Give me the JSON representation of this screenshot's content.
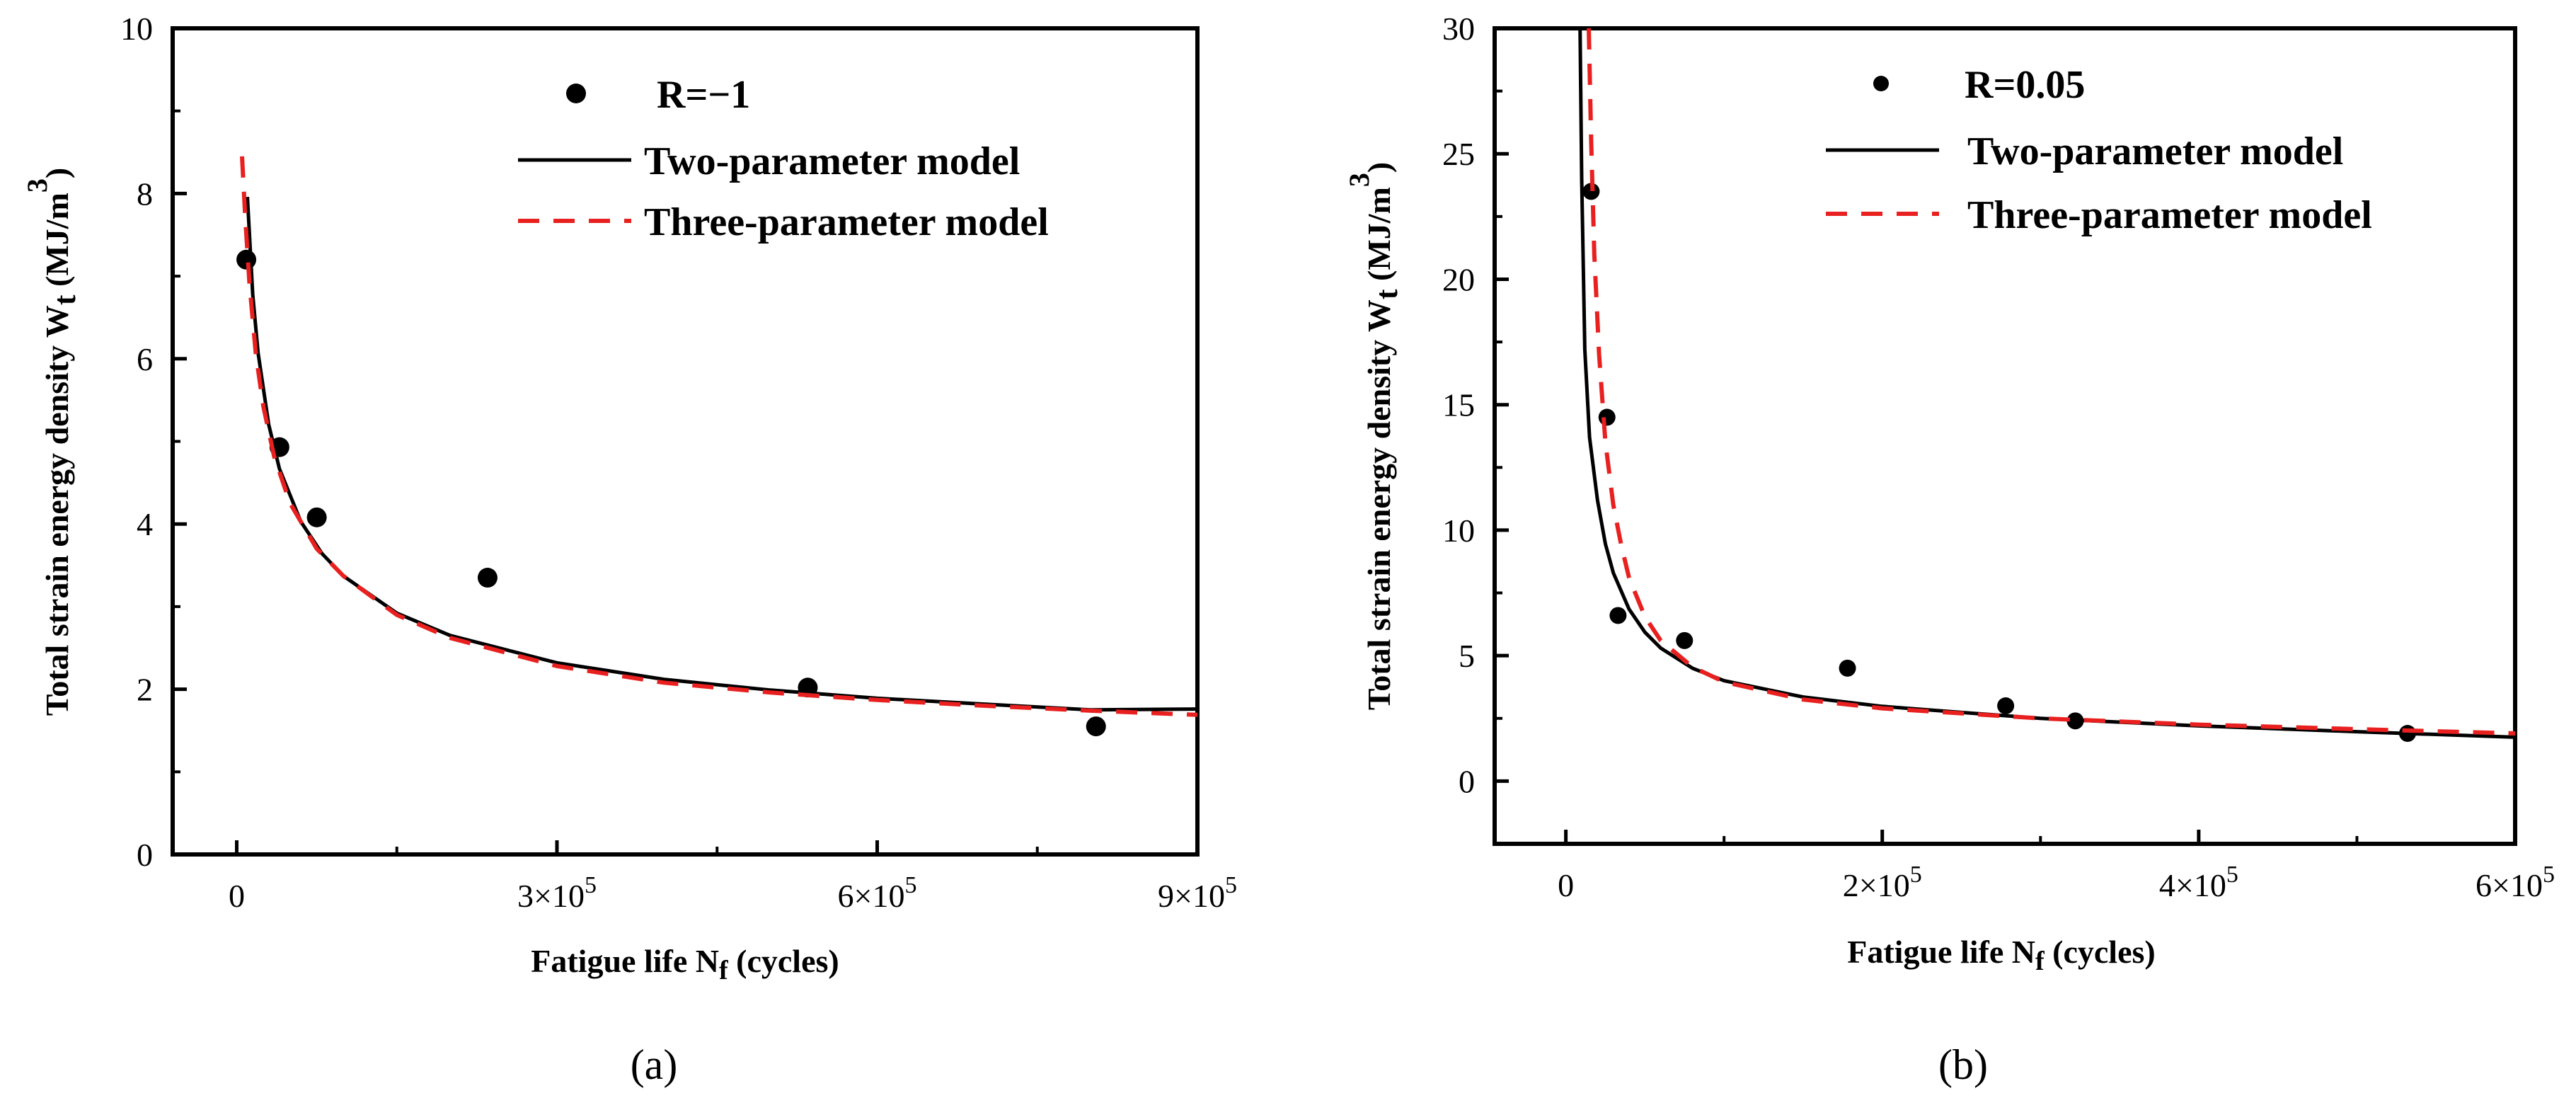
{
  "colors": {
    "model2": "#000000",
    "model3": "#e8201f",
    "points": "#000000"
  },
  "chart_data": [
    {
      "type": "scatter",
      "panel_label": "(a)",
      "xlabel_main": "Fatigue life N",
      "xlabel_sub": "f",
      "xlabel_tail": " (cycles)",
      "ylabel_main": "Total strain energy density  W",
      "ylabel_sub": "t",
      "ylabel_tail": " (MJ/m",
      "ylabel_sup": "3",
      "ylabel_close": ")",
      "xlim": [
        -60000,
        900000
      ],
      "ylim": [
        0,
        10
      ],
      "xticks": [
        0,
        300000,
        600000,
        900000
      ],
      "xtick_labels": [
        {
          "base": "0",
          "exp": ""
        },
        {
          "base": "3×10",
          "exp": "5"
        },
        {
          "base": "6×10",
          "exp": "5"
        },
        {
          "base": "9×10",
          "exp": "5"
        }
      ],
      "yticks": [
        0,
        2,
        4,
        6,
        8,
        10
      ],
      "ytick_labels": [
        "0",
        "2",
        "4",
        "6",
        "8",
        "10"
      ],
      "legend": [
        "R=−1",
        "Two-parameter model",
        "Three-parameter model"
      ],
      "legend_position": "top-right",
      "series": [
        {
          "name": "R=−1",
          "kind": "points",
          "x": [
            9000,
            40000,
            75000,
            235000,
            535000,
            805000
          ],
          "y": [
            7.2,
            4.93,
            4.08,
            3.35,
            2.02,
            1.55
          ]
        },
        {
          "name": "Two-parameter model",
          "kind": "line",
          "x": [
            10000,
            15000,
            20000,
            30000,
            40000,
            60000,
            80000,
            100000,
            150000,
            200000,
            300000,
            400000,
            500000,
            600000,
            700000,
            800000,
            900000
          ],
          "y": [
            7.96,
            6.78,
            6.07,
            5.2,
            4.67,
            4.03,
            3.64,
            3.37,
            2.92,
            2.65,
            2.32,
            2.12,
            1.99,
            1.89,
            1.82,
            1.75,
            1.76
          ]
        },
        {
          "name": "Three-parameter model",
          "kind": "dashed-line",
          "x": [
            5000,
            8000,
            12000,
            18000,
            25000,
            35000,
            50000,
            75000,
            100000,
            150000,
            200000,
            300000,
            400000,
            500000,
            600000,
            700000,
            800000,
            900000
          ],
          "y": [
            8.45,
            7.7,
            6.9,
            6.05,
            5.42,
            4.82,
            4.25,
            3.7,
            3.37,
            2.9,
            2.62,
            2.28,
            2.08,
            1.96,
            1.87,
            1.8,
            1.74,
            1.69
          ]
        }
      ]
    },
    {
      "type": "scatter",
      "panel_label": "(b)",
      "xlabel_main": "Fatigue life N",
      "xlabel_sub": "f",
      "xlabel_tail": " (cycles)",
      "ylabel_main": "Total strain energy density  W",
      "ylabel_sub": "t",
      "ylabel_tail": " (MJ/m",
      "ylabel_sup": "3",
      "ylabel_close": ")",
      "xlim": [
        -45000,
        600000
      ],
      "ylim": [
        -2.5,
        30
      ],
      "xticks": [
        0,
        200000,
        400000,
        600000
      ],
      "xtick_labels": [
        {
          "base": "0",
          "exp": ""
        },
        {
          "base": "2×10",
          "exp": "5"
        },
        {
          "base": "4×10",
          "exp": "5"
        },
        {
          "base": "6×10",
          "exp": "5"
        }
      ],
      "yticks": [
        0,
        5,
        10,
        15,
        20,
        25,
        30
      ],
      "ytick_labels": [
        "0",
        "5",
        "10",
        "15",
        "20",
        "25",
        "30"
      ],
      "legend": [
        "R=0.05",
        "Two-parameter model",
        "Three-parameter model"
      ],
      "legend_position": "top-right",
      "series": [
        {
          "name": "R=0.05",
          "kind": "points",
          "x": [
            16000,
            26000,
            33000,
            75000,
            178000,
            278000,
            322000,
            532000
          ],
          "y": [
            23.5,
            14.5,
            6.6,
            5.6,
            4.5,
            3.0,
            2.4,
            1.9
          ]
        },
        {
          "name": "Two-parameter model",
          "kind": "line",
          "x": [
            9000,
            10000,
            12000,
            15000,
            20000,
            25000,
            30000,
            40000,
            50000,
            60000,
            80000,
            100000,
            150000,
            200000,
            300000,
            400000,
            500000,
            600000
          ],
          "y": [
            30,
            24.0,
            17.2,
            13.7,
            11.2,
            9.45,
            8.3,
            6.85,
            5.93,
            5.3,
            4.5,
            4.0,
            3.35,
            2.98,
            2.5,
            2.2,
            1.97,
            1.75
          ]
        },
        {
          "name": "Three-parameter model",
          "kind": "dashed-line",
          "x": [
            14500,
            16000,
            18000,
            21000,
            25000,
            30000,
            35000,
            40000,
            50000,
            60000,
            80000,
            100000,
            150000,
            200000,
            300000,
            400000,
            500000,
            600000
          ],
          "y": [
            30,
            25.5,
            21.0,
            17.0,
            13.5,
            11.0,
            9.4,
            8.1,
            6.55,
            5.6,
            4.55,
            3.95,
            3.25,
            2.9,
            2.5,
            2.25,
            2.07,
            1.9
          ]
        }
      ]
    }
  ]
}
